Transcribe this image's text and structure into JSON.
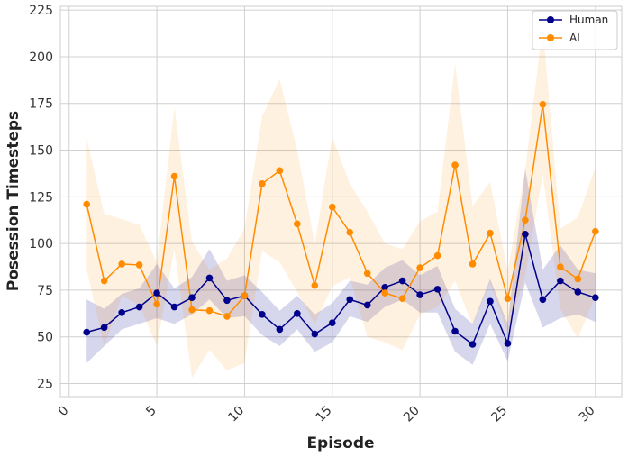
{
  "chart_data": {
    "type": "line",
    "xlabel": "Episode",
    "ylabel": "Posession Timesteps",
    "xlim": [
      -0.5,
      31.5
    ],
    "ylim": [
      18,
      227
    ],
    "xticks": [
      0,
      5,
      10,
      15,
      20,
      25,
      30
    ],
    "yticks": [
      25,
      50,
      75,
      100,
      125,
      150,
      175,
      200,
      225
    ],
    "grid": true,
    "legend": "top-right",
    "x": [
      1,
      2,
      3,
      4,
      5,
      6,
      7,
      8,
      9,
      10,
      11,
      12,
      13,
      14,
      15,
      16,
      17,
      18,
      19,
      20,
      21,
      22,
      23,
      24,
      25,
      26,
      27,
      28,
      29,
      30
    ],
    "series": [
      {
        "name": "Human",
        "color": "#00008b",
        "values": [
          52.5,
          55,
          63,
          66,
          73.5,
          66,
          71,
          81.5,
          69.5,
          72,
          62,
          54,
          62.5,
          51.5,
          57.5,
          70,
          67,
          76.5,
          80,
          72.5,
          75.5,
          53,
          46,
          69,
          46.5,
          105,
          70,
          80,
          74,
          71
        ],
        "lower": [
          36,
          45,
          54,
          57,
          60,
          57,
          62,
          70,
          60,
          61,
          51,
          45,
          54,
          42,
          47,
          61,
          58,
          66,
          70,
          63,
          63,
          42,
          35,
          57,
          37,
          79,
          55,
          60,
          62,
          58
        ],
        "upper": [
          70,
          65,
          73,
          76,
          89,
          76,
          82,
          97,
          80,
          83,
          74,
          64,
          72,
          62,
          68,
          80,
          78,
          87,
          91,
          83,
          88,
          65,
          57,
          81,
          57,
          140,
          86,
          99,
          86,
          84
        ]
      },
      {
        "name": "AI",
        "color": "#ff8c00",
        "values": [
          121,
          80,
          89,
          88.5,
          67.5,
          136,
          64.5,
          64,
          61,
          72,
          132,
          139,
          110.5,
          77.5,
          119.5,
          106,
          84,
          73.5,
          70.5,
          87,
          93.5,
          142,
          89,
          105.5,
          70.5,
          112.5,
          174.5,
          87.5,
          81,
          106.5
        ],
        "lower": [
          86,
          45,
          72,
          67,
          45,
          97,
          28,
          43,
          32,
          36,
          96,
          90,
          74,
          57,
          77,
          82,
          50,
          47,
          43,
          62,
          66,
          80,
          56,
          79,
          52,
          83,
          137,
          65,
          49,
          72
        ],
        "upper": [
          156,
          116,
          113,
          110,
          90,
          173,
          101,
          86,
          92,
          108,
          168,
          188,
          150,
          100,
          157,
          132,
          117,
          100,
          97,
          112,
          117,
          196,
          120,
          133,
          85,
          140,
          216,
          108,
          114,
          141
        ]
      }
    ]
  }
}
